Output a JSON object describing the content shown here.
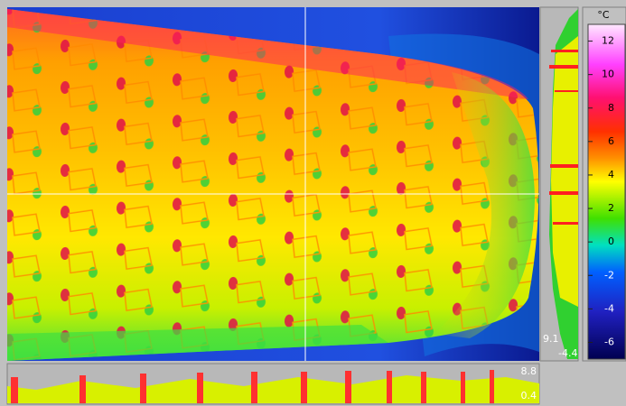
{
  "colorbar": {
    "unit": "°C",
    "range": [
      -7,
      13
    ],
    "ticks": [
      12,
      10,
      8,
      6,
      4,
      2,
      0,
      -2,
      -4,
      -6
    ]
  },
  "vertical_profile": {
    "max_label": "9.1",
    "min_label": "-4.4"
  },
  "horizontal_profile": {
    "max_label": "8.8",
    "min_label": "0.4"
  }
}
